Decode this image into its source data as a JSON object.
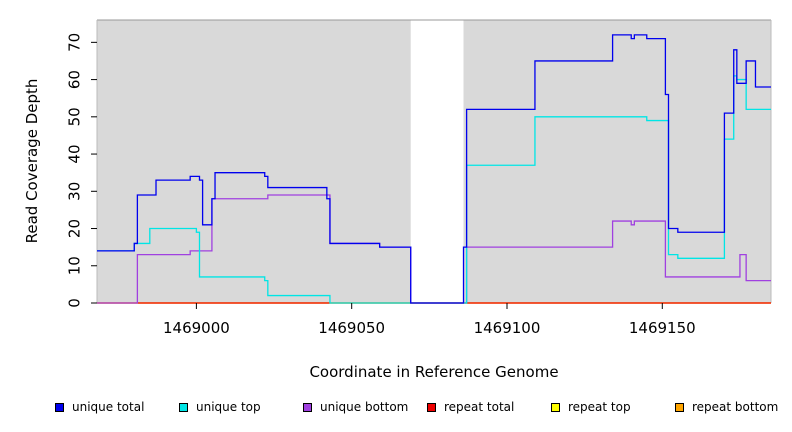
{
  "chart_data": {
    "type": "line",
    "title": "",
    "xlabel": "Coordinate in Reference Genome",
    "ylabel": "Read Coverage Depth",
    "xlim": [
      1468968,
      1469185
    ],
    "ylim": [
      0,
      76
    ],
    "x_ticks": [
      1469000,
      1469050,
      1469100,
      1469150
    ],
    "y_ticks": [
      0,
      10,
      20,
      30,
      40,
      50,
      60,
      70
    ],
    "background": "#d9d9d9",
    "gap": [
      1469069,
      1469086
    ],
    "legend_position": "bottom",
    "series": [
      {
        "name": "unique total",
        "color": "#0000ee",
        "steps": [
          [
            1468968,
            14
          ],
          [
            1468980,
            16
          ],
          [
            1468981,
            29
          ],
          [
            1468987,
            33
          ],
          [
            1468998,
            34
          ],
          [
            1469001,
            33
          ],
          [
            1469002,
            21
          ],
          [
            1469005,
            28
          ],
          [
            1469006,
            35
          ],
          [
            1469022,
            34
          ],
          [
            1469023,
            31
          ],
          [
            1469042,
            28
          ],
          [
            1469043,
            16
          ],
          [
            1469059,
            15
          ],
          [
            1469069,
            0
          ],
          [
            1469086,
            15
          ],
          [
            1469087,
            52
          ],
          [
            1469109,
            65
          ],
          [
            1469134,
            72
          ],
          [
            1469140,
            71
          ],
          [
            1469141,
            72
          ],
          [
            1469145,
            71
          ],
          [
            1469151,
            56
          ],
          [
            1469152,
            20
          ],
          [
            1469155,
            19
          ],
          [
            1469170,
            51
          ],
          [
            1469173,
            68
          ],
          [
            1469174,
            59
          ],
          [
            1469177,
            65
          ],
          [
            1469180,
            58
          ],
          [
            1469185,
            58
          ]
        ]
      },
      {
        "name": "unique top",
        "color": "#00e5e5",
        "steps": [
          [
            1468968,
            14
          ],
          [
            1468980,
            16
          ],
          [
            1468985,
            20
          ],
          [
            1469000,
            19
          ],
          [
            1469001,
            7
          ],
          [
            1469022,
            6
          ],
          [
            1469023,
            2
          ],
          [
            1469043,
            0
          ],
          [
            1469086,
            0
          ],
          [
            1469087,
            37
          ],
          [
            1469109,
            50
          ],
          [
            1469145,
            49
          ],
          [
            1469152,
            13
          ],
          [
            1469155,
            12
          ],
          [
            1469170,
            44
          ],
          [
            1469173,
            61
          ],
          [
            1469174,
            60
          ],
          [
            1469177,
            52
          ],
          [
            1469185,
            52
          ]
        ]
      },
      {
        "name": "unique bottom",
        "color": "#a040e0",
        "steps": [
          [
            1468968,
            0
          ],
          [
            1468981,
            13
          ],
          [
            1468998,
            14
          ],
          [
            1469005,
            28
          ],
          [
            1469023,
            29
          ],
          [
            1469043,
            16
          ],
          [
            1469059,
            15
          ],
          [
            1469069,
            0
          ],
          [
            1469086,
            0
          ],
          [
            1469087,
            15
          ],
          [
            1469134,
            22
          ],
          [
            1469140,
            21
          ],
          [
            1469141,
            22
          ],
          [
            1469151,
            7
          ],
          [
            1469171,
            7
          ],
          [
            1469175,
            13
          ],
          [
            1469177,
            6
          ],
          [
            1469185,
            6
          ]
        ]
      },
      {
        "name": "repeat total",
        "color": "#ee0000",
        "steps": [
          [
            1468968,
            0
          ],
          [
            1469185,
            0
          ]
        ]
      },
      {
        "name": "repeat top",
        "color": "#ffff00",
        "steps": [
          [
            1468968,
            0
          ],
          [
            1469185,
            0
          ]
        ]
      },
      {
        "name": "repeat bottom",
        "color": "#ffa500",
        "steps": [
          [
            1468968,
            0
          ],
          [
            1469185,
            0
          ]
        ]
      }
    ]
  }
}
